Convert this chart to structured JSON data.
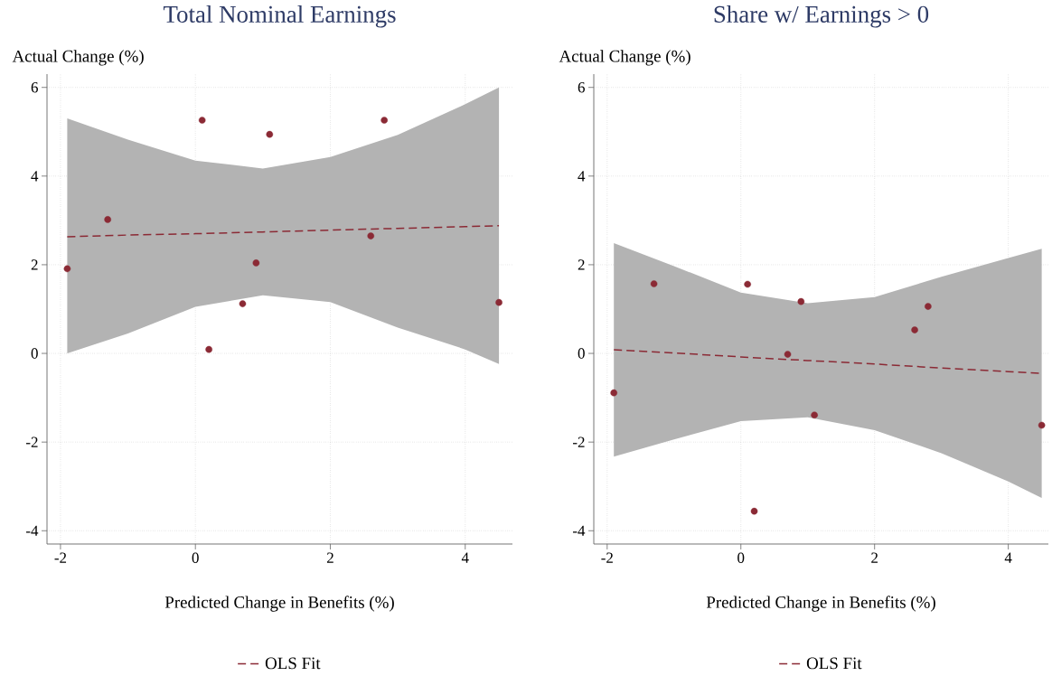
{
  "chart_data": [
    {
      "type": "scatter",
      "title": "Total Nominal Earnings",
      "xlabel": "Predicted Change in Benefits (%)",
      "ylabel": "Actual Change (%)",
      "xlim": [
        -2.2,
        4.7
      ],
      "ylim": [
        -4.3,
        6.3
      ],
      "xticks": [
        -2,
        0,
        2,
        4
      ],
      "yticks": [
        -4,
        -2,
        0,
        2,
        4,
        6
      ],
      "grid": true,
      "legend": "bottom",
      "series": [
        {
          "type": "scatter",
          "color": "#8b2a35",
          "marker": "circle",
          "x": [
            -1.9,
            -1.3,
            0.1,
            0.2,
            0.7,
            0.9,
            1.1,
            2.6,
            2.8,
            4.5
          ],
          "values": [
            1.91,
            3.02,
            5.26,
            0.09,
            1.12,
            2.04,
            4.94,
            2.65,
            5.26,
            1.15
          ]
        },
        {
          "type": "line",
          "name": "OLS Fit",
          "color": "#8b2a35",
          "line_style": "dashed",
          "marker": "none",
          "x": [
            -1.9,
            -1,
            0,
            1,
            2,
            3,
            4,
            4.5
          ],
          "values": [
            2.63,
            2.67,
            2.7,
            2.74,
            2.78,
            2.82,
            2.86,
            2.88
          ],
          "lower": [
            0.0,
            0.45,
            1.05,
            1.31,
            1.16,
            0.58,
            0.09,
            -0.24
          ],
          "upper": [
            5.3,
            4.82,
            4.35,
            4.17,
            4.43,
            4.93,
            5.62,
            6.0
          ]
        }
      ]
    },
    {
      "type": "scatter",
      "title": "Share w/ Earnings > 0",
      "xlabel": "Predicted Change in Benefits (%)",
      "ylabel": "Actual Change (%)",
      "xlim": [
        -2.2,
        4.6
      ],
      "ylim": [
        -4.3,
        6.3
      ],
      "xticks": [
        -2,
        0,
        2,
        4
      ],
      "yticks": [
        -4,
        -2,
        0,
        2,
        4,
        6
      ],
      "grid": true,
      "legend": "bottom",
      "series": [
        {
          "type": "scatter",
          "color": "#8b2a35",
          "marker": "circle",
          "x": [
            -1.9,
            -1.3,
            0.1,
            0.2,
            0.7,
            0.9,
            1.1,
            2.6,
            2.8,
            4.5
          ],
          "values": [
            -0.89,
            1.57,
            1.56,
            -3.56,
            -0.02,
            1.17,
            -1.39,
            0.53,
            1.06,
            -1.62
          ]
        },
        {
          "type": "line",
          "name": "OLS Fit",
          "color": "#8b2a35",
          "line_style": "dashed",
          "marker": "none",
          "x": [
            -1.9,
            -1,
            0,
            1,
            2,
            3,
            4,
            4.5
          ],
          "values": [
            0.08,
            0.01,
            -0.08,
            -0.16,
            -0.24,
            -0.33,
            -0.41,
            -0.45
          ],
          "lower": [
            -2.33,
            -1.94,
            -1.53,
            -1.44,
            -1.73,
            -2.25,
            -2.89,
            -3.26
          ],
          "upper": [
            2.49,
            1.97,
            1.37,
            1.13,
            1.27,
            1.73,
            2.15,
            2.36
          ]
        }
      ]
    }
  ]
}
